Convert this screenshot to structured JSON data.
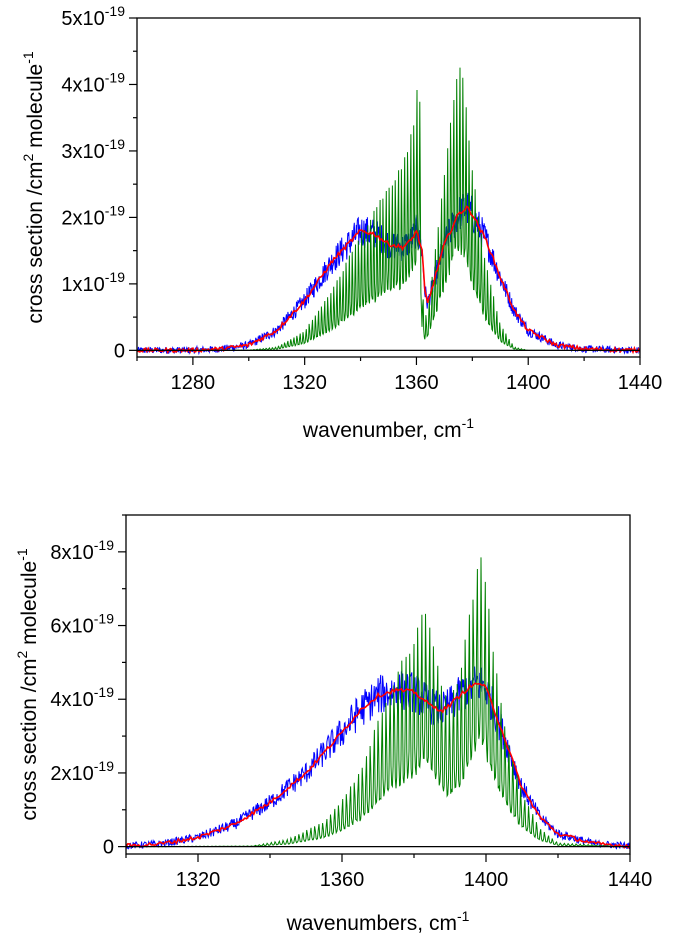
{
  "chart_data": [
    {
      "type": "line",
      "xlabel": {
        "text": "wavenumber, cm",
        "sup": "-1"
      },
      "ylabel": {
        "text": "cross section /cm",
        "sup1": "2",
        "mid": " molecule",
        "sup2": "-1"
      },
      "xlim": [
        1260,
        1440
      ],
      "ylim": [
        -1e-20,
        5e-19
      ],
      "xticks": [
        1280,
        1320,
        1360,
        1400,
        1440
      ],
      "yticks": [
        {
          "value": 0,
          "mantissa": "0",
          "exp": ""
        },
        {
          "value": 1e-19,
          "mantissa": "1x10",
          "exp": "-19"
        },
        {
          "value": 2e-19,
          "mantissa": "2x10",
          "exp": "-19"
        },
        {
          "value": 3e-19,
          "mantissa": "3x10",
          "exp": "-19"
        },
        {
          "value": 4e-19,
          "mantissa": "4x10",
          "exp": "-19"
        },
        {
          "value": 5e-19,
          "mantissa": "5x10",
          "exp": "-19"
        }
      ],
      "zero_line": true,
      "series": [
        {
          "color": "#0000ff",
          "style": "noisy",
          "x": [
            1260,
            1280,
            1290,
            1300,
            1310,
            1320,
            1330,
            1340,
            1345,
            1350,
            1355,
            1358,
            1360,
            1362,
            1363,
            1364,
            1366,
            1370,
            1375,
            1378,
            1380,
            1385,
            1390,
            1395,
            1400,
            1410,
            1420,
            1440
          ],
          "y": [
            0,
            3e-22,
            2e-21,
            8e-21,
            3e-20,
            7.5e-20,
            1.35e-19,
            1.8e-19,
            1.75e-19,
            1.6e-19,
            1.55e-19,
            1.65e-19,
            1.8e-19,
            1.5e-19,
            9e-20,
            7e-20,
            1e-19,
            1.6e-19,
            2.05e-19,
            2.15e-19,
            2.05e-19,
            1.65e-19,
            1.1e-19,
            6e-20,
            3e-20,
            8e-21,
            2e-21,
            0
          ]
        },
        {
          "color": "#ff0000",
          "style": "smooth",
          "x": [
            1260,
            1280,
            1290,
            1300,
            1310,
            1320,
            1330,
            1340,
            1345,
            1350,
            1355,
            1358,
            1360,
            1362,
            1363,
            1364,
            1366,
            1370,
            1375,
            1378,
            1380,
            1385,
            1390,
            1395,
            1400,
            1410,
            1420,
            1440
          ],
          "y": [
            0,
            3e-22,
            2e-21,
            8e-21,
            3e-20,
            7.5e-20,
            1.35e-19,
            1.8e-19,
            1.75e-19,
            1.6e-19,
            1.55e-19,
            1.65e-19,
            1.8e-19,
            1.5e-19,
            9e-20,
            7e-20,
            1e-19,
            1.6e-19,
            2.05e-19,
            2.15e-19,
            2.05e-19,
            1.65e-19,
            1.1e-19,
            6e-20,
            3e-20,
            8e-21,
            2e-21,
            0
          ]
        },
        {
          "color": "#008000",
          "style": "spiky",
          "x": [
            1260,
            1300,
            1310,
            1320,
            1330,
            1340,
            1345,
            1350,
            1355,
            1358,
            1360,
            1361,
            1362,
            1363,
            1364,
            1366,
            1370,
            1373,
            1375,
            1377,
            1380,
            1385,
            1390,
            1395,
            1400,
            1440
          ],
          "y": [
            0,
            5e-22,
            5e-21,
            3e-20,
            9.5e-20,
            1.8e-19,
            2.2e-19,
            2.5e-19,
            2.9e-19,
            3.3e-19,
            3.9e-19,
            4.5e-19,
            1e-19,
            5e-20,
            6e-20,
            1.3e-19,
            2.8e-19,
            3.9e-19,
            4.5e-19,
            4.1e-19,
            2.8e-19,
            1.3e-19,
            4e-20,
            5e-21,
            0,
            0
          ]
        }
      ]
    },
    {
      "type": "line",
      "xlabel": {
        "text": "wavenumbers, cm",
        "sup": "-1"
      },
      "ylabel": {
        "text": "cross section /cm",
        "sup1": "2",
        "mid": " molecule",
        "sup2": "-1"
      },
      "xlim": [
        1300,
        1440
      ],
      "ylim": [
        -2e-20,
        9e-19
      ],
      "xticks": [
        1320,
        1360,
        1400,
        1440
      ],
      "yticks": [
        {
          "value": 0,
          "mantissa": "0",
          "exp": ""
        },
        {
          "value": 2e-19,
          "mantissa": "2x10",
          "exp": "-19"
        },
        {
          "value": 4e-19,
          "mantissa": "4x10",
          "exp": "-19"
        },
        {
          "value": 6e-19,
          "mantissa": "6x10",
          "exp": "-19"
        },
        {
          "value": 8e-19,
          "mantissa": "8x10",
          "exp": "-19"
        }
      ],
      "zero_line": true,
      "series": [
        {
          "color": "#0000ff",
          "style": "noisy",
          "x": [
            1300,
            1310,
            1320,
            1330,
            1340,
            1350,
            1360,
            1365,
            1370,
            1375,
            1380,
            1385,
            1388,
            1390,
            1395,
            1398,
            1400,
            1405,
            1410,
            1415,
            1420,
            1430,
            1440
          ],
          "y": [
            2e-21,
            8e-21,
            2.5e-20,
            6e-20,
            1.2e-19,
            2e-19,
            3.1e-19,
            3.7e-19,
            4.1e-19,
            4.25e-19,
            4.2e-19,
            3.8e-19,
            3.7e-19,
            3.85e-19,
            4.3e-19,
            4.45e-19,
            4.3e-19,
            3e-19,
            1.6e-19,
            8e-20,
            3.5e-20,
            8e-21,
            2e-21
          ]
        },
        {
          "color": "#ff0000",
          "style": "smooth",
          "x": [
            1300,
            1310,
            1320,
            1330,
            1340,
            1350,
            1360,
            1365,
            1370,
            1375,
            1380,
            1385,
            1388,
            1390,
            1395,
            1398,
            1400,
            1405,
            1410,
            1415,
            1420,
            1430,
            1440
          ],
          "y": [
            2e-21,
            8e-21,
            2.5e-20,
            6e-20,
            1.2e-19,
            2e-19,
            3.1e-19,
            3.7e-19,
            4.1e-19,
            4.25e-19,
            4.2e-19,
            3.8e-19,
            3.7e-19,
            3.85e-19,
            4.3e-19,
            4.45e-19,
            4.3e-19,
            3e-19,
            1.6e-19,
            8e-20,
            3.5e-20,
            8e-21,
            2e-21
          ]
        },
        {
          "color": "#008000",
          "style": "spiky",
          "x": [
            1300,
            1335,
            1345,
            1355,
            1360,
            1365,
            1370,
            1375,
            1380,
            1383,
            1386,
            1388,
            1390,
            1393,
            1396,
            1398,
            1400,
            1403,
            1406,
            1410,
            1415,
            1420,
            1440
          ],
          "y": [
            0,
            2e-21,
            2e-20,
            7e-20,
            1.3e-19,
            2.1e-19,
            3.5e-19,
            4.8e-19,
            5.8e-19,
            6.6e-19,
            5.5e-19,
            4.3e-19,
            4e-19,
            5e-19,
            6.8e-19,
            8.3e-19,
            7.3e-19,
            4.8e-19,
            3e-19,
            1.5e-19,
            5e-20,
            1e-20,
            0
          ]
        }
      ]
    }
  ]
}
